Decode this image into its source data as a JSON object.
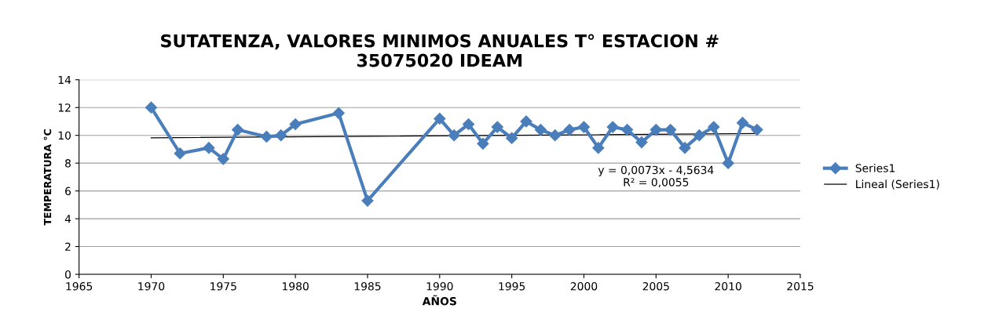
{
  "chart_data": {
    "type": "line",
    "title": "SUTATENZA, VALORES MINIMOS ANUALES T° ESTACION #\n35075020 IDEAM",
    "xlabel": "AÑOS",
    "ylabel": "TEMPERATURA °C",
    "xlim": [
      1965,
      2015
    ],
    "xticks": [
      1965,
      1970,
      1975,
      1980,
      1985,
      1990,
      1995,
      2000,
      2005,
      2010,
      2015
    ],
    "ylim": [
      0,
      14
    ],
    "yticks": [
      0,
      2,
      4,
      6,
      8,
      10,
      12,
      14
    ],
    "grid": "y",
    "legend": "right",
    "marker": "diamond",
    "line_style": "solid",
    "series": [
      {
        "name": "Series1",
        "color": "#4a7ebb",
        "x": [
          1970,
          1972,
          1974,
          1975,
          1976,
          1978,
          1979,
          1980,
          1983,
          1985,
          1990,
          1991,
          1992,
          1993,
          1994,
          1995,
          1996,
          1997,
          1998,
          1999,
          2000,
          2001,
          2002,
          2003,
          2004,
          2005,
          2006,
          2007,
          2008,
          2009,
          2010,
          2011,
          2012
        ],
        "values": [
          12.0,
          8.7,
          9.1,
          8.3,
          10.4,
          9.9,
          10.0,
          10.8,
          11.6,
          5.3,
          11.2,
          10.0,
          10.8,
          9.4,
          10.6,
          9.8,
          11.0,
          10.4,
          10.0,
          10.4,
          10.6,
          9.1,
          10.6,
          10.4,
          9.5,
          10.4,
          10.4,
          9.1,
          10.0,
          10.6,
          8.0,
          10.9,
          10.4
        ]
      },
      {
        "name": "Lineal (Series1)",
        "type": "line",
        "marker": "none",
        "color": "#000000",
        "x": [
          1970,
          2012
        ],
        "values": [
          9.82,
          10.13
        ]
      }
    ],
    "annotations": [
      "y = 0,0073x - 4,5634\nR² = 0,0055"
    ]
  }
}
